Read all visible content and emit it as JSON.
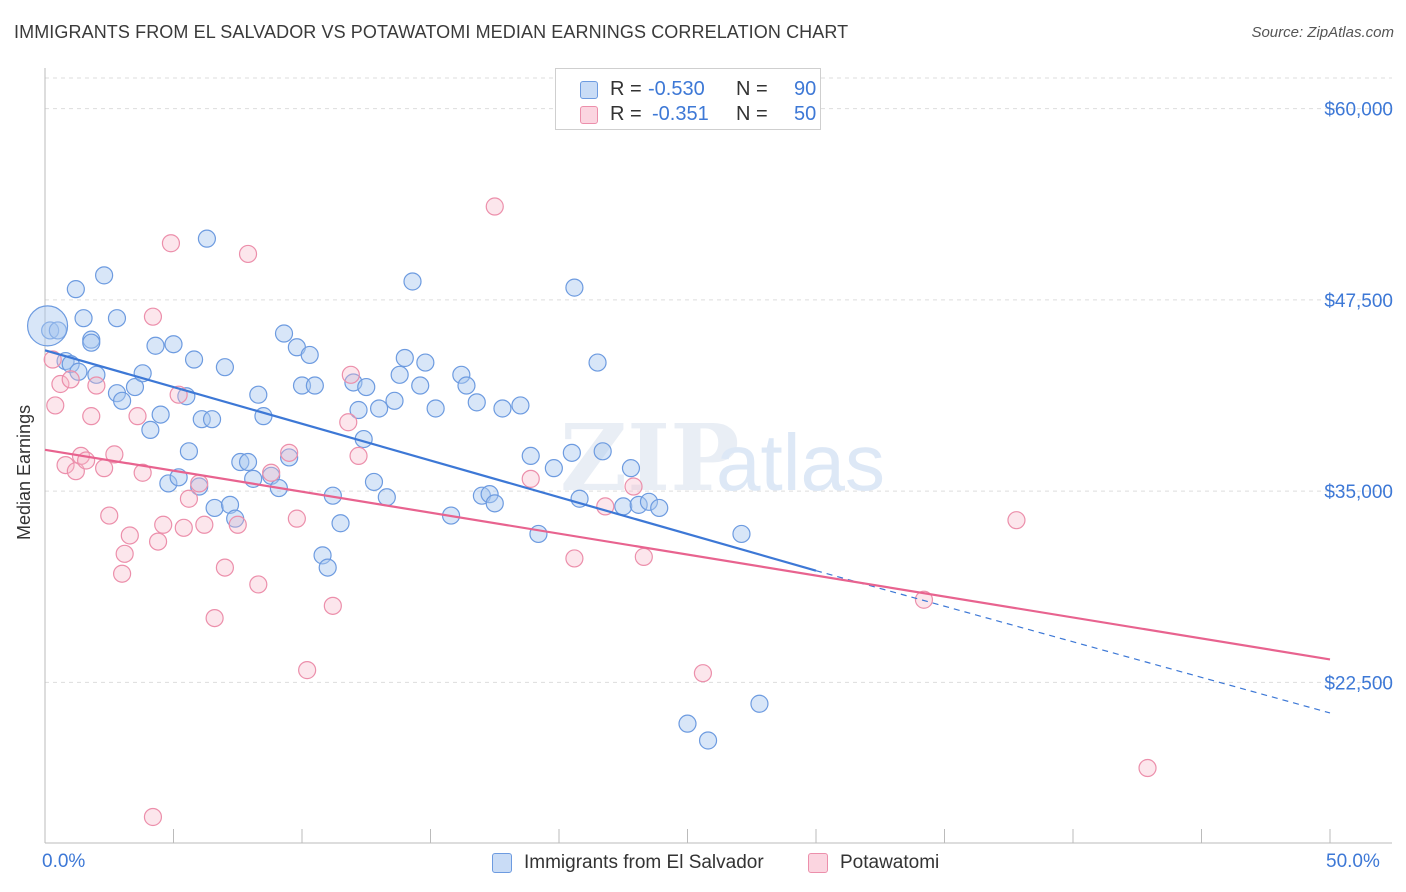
{
  "header": {
    "title": "IMMIGRANTS FROM EL SALVADOR VS POTAWATOMI MEDIAN EARNINGS CORRELATION CHART",
    "source": "Source: ZipAtlas.com"
  },
  "legend": {
    "series": [
      {
        "r_label": "R =",
        "r_value": "-0.530",
        "n_label": "N =",
        "n_value": "90",
        "color": "#a8c8f0"
      },
      {
        "r_label": "R =",
        "r_value": "-0.351",
        "n_label": "N =",
        "n_value": "50",
        "color": "#f5b6c8"
      }
    ]
  },
  "bottom_legend": [
    "Immigrants from El Salvador",
    "Potawatomi"
  ],
  "watermark": {
    "zip": "ZIP",
    "atlas": "atlas"
  },
  "chart_data": {
    "type": "scatter",
    "title": "IMMIGRANTS FROM EL SALVADOR VS POTAWATOMI MEDIAN EARNINGS CORRELATION CHART",
    "xlabel": "",
    "ylabel": "Median Earnings",
    "xlim": [
      0,
      50
    ],
    "ylim": [
      12000,
      62000
    ],
    "x_tick_labels": [
      "0.0%",
      "50.0%"
    ],
    "y_ticks": [
      {
        "value": 22500,
        "label": "$22,500"
      },
      {
        "value": 35000,
        "label": "$35,000"
      },
      {
        "value": 47500,
        "label": "$47,500"
      },
      {
        "value": 60000,
        "label": "$60,000"
      }
    ],
    "grid": true,
    "legend_position": "top-center",
    "colors": {
      "blue": "#3d78d6",
      "blue_fill": "#a8c8f0",
      "pink": "#e8638f",
      "pink_fill": "#f5b6c8",
      "axis_text": "#3d78d6"
    },
    "series": [
      {
        "name": "Immigrants from El Salvador",
        "color": "#3d78d6",
        "trend": {
          "x0": 0,
          "y0": 44200,
          "x1": 30,
          "y1": 29800,
          "dash_to_x": 50,
          "dash_to_y": 20500
        },
        "points": [
          [
            0.2,
            45500
          ],
          [
            0.5,
            45500
          ],
          [
            0.8,
            43500
          ],
          [
            1.0,
            43300
          ],
          [
            1.2,
            48200
          ],
          [
            1.3,
            42800
          ],
          [
            1.5,
            46300
          ],
          [
            1.8,
            44900
          ],
          [
            1.8,
            44700
          ],
          [
            2.0,
            42600
          ],
          [
            2.3,
            49100
          ],
          [
            2.8,
            46300
          ],
          [
            2.8,
            41400
          ],
          [
            3.0,
            40900
          ],
          [
            3.5,
            41800
          ],
          [
            3.8,
            42700
          ],
          [
            4.1,
            39000
          ],
          [
            4.3,
            44500
          ],
          [
            4.5,
            40000
          ],
          [
            4.8,
            35500
          ],
          [
            5.0,
            44600
          ],
          [
            5.2,
            35900
          ],
          [
            5.5,
            41200
          ],
          [
            5.6,
            37600
          ],
          [
            5.8,
            43600
          ],
          [
            6.0,
            35300
          ],
          [
            6.1,
            39700
          ],
          [
            6.3,
            51500
          ],
          [
            6.5,
            39700
          ],
          [
            6.6,
            33900
          ],
          [
            7.0,
            43100
          ],
          [
            7.2,
            34100
          ],
          [
            7.4,
            33200
          ],
          [
            7.6,
            36900
          ],
          [
            7.9,
            36900
          ],
          [
            8.1,
            35800
          ],
          [
            8.3,
            41300
          ],
          [
            8.5,
            39900
          ],
          [
            8.8,
            36000
          ],
          [
            9.1,
            35200
          ],
          [
            9.3,
            45300
          ],
          [
            9.5,
            37200
          ],
          [
            9.8,
            44400
          ],
          [
            10.0,
            41900
          ],
          [
            10.3,
            43900
          ],
          [
            10.5,
            41900
          ],
          [
            10.8,
            30800
          ],
          [
            11.0,
            30000
          ],
          [
            11.2,
            34700
          ],
          [
            11.5,
            32900
          ],
          [
            12.0,
            42100
          ],
          [
            12.2,
            40300
          ],
          [
            12.4,
            38400
          ],
          [
            12.5,
            41800
          ],
          [
            12.8,
            35600
          ],
          [
            13.0,
            40400
          ],
          [
            13.3,
            34600
          ],
          [
            13.6,
            40900
          ],
          [
            13.8,
            42600
          ],
          [
            14.0,
            43700
          ],
          [
            14.3,
            48700
          ],
          [
            14.6,
            41900
          ],
          [
            14.8,
            43400
          ],
          [
            15.2,
            40400
          ],
          [
            15.8,
            33400
          ],
          [
            16.2,
            42600
          ],
          [
            16.4,
            41900
          ],
          [
            16.8,
            40800
          ],
          [
            17.0,
            34700
          ],
          [
            17.3,
            34800
          ],
          [
            17.5,
            34200
          ],
          [
            17.8,
            40400
          ],
          [
            18.5,
            40600
          ],
          [
            18.9,
            37300
          ],
          [
            19.2,
            32200
          ],
          [
            19.8,
            36500
          ],
          [
            20.5,
            37500
          ],
          [
            20.6,
            48300
          ],
          [
            20.8,
            34500
          ],
          [
            21.5,
            43400
          ],
          [
            21.7,
            37600
          ],
          [
            22.5,
            34000
          ],
          [
            22.8,
            36500
          ],
          [
            23.1,
            34100
          ],
          [
            23.5,
            34300
          ],
          [
            23.9,
            33900
          ],
          [
            25.0,
            19800
          ],
          [
            25.8,
            18700
          ],
          [
            27.1,
            32200
          ],
          [
            27.8,
            21100
          ]
        ]
      },
      {
        "name": "Potawatomi",
        "color": "#e8638f",
        "trend": {
          "x0": 0,
          "y0": 37700,
          "x1": 50,
          "y1": 24000
        },
        "points": [
          [
            0.3,
            43600
          ],
          [
            0.4,
            40600
          ],
          [
            0.6,
            42000
          ],
          [
            0.8,
            36700
          ],
          [
            1.0,
            42300
          ],
          [
            1.2,
            36300
          ],
          [
            1.4,
            37300
          ],
          [
            1.6,
            37000
          ],
          [
            1.8,
            39900
          ],
          [
            2.0,
            41900
          ],
          [
            2.3,
            36500
          ],
          [
            2.5,
            33400
          ],
          [
            2.7,
            37400
          ],
          [
            3.0,
            29600
          ],
          [
            3.1,
            30900
          ],
          [
            3.3,
            32100
          ],
          [
            3.6,
            39900
          ],
          [
            3.8,
            36200
          ],
          [
            4.2,
            46400
          ],
          [
            4.4,
            31700
          ],
          [
            4.6,
            32800
          ],
          [
            4.9,
            51200
          ],
          [
            5.2,
            41300
          ],
          [
            5.4,
            32600
          ],
          [
            5.6,
            34500
          ],
          [
            6.0,
            35500
          ],
          [
            6.2,
            32800
          ],
          [
            6.6,
            26700
          ],
          [
            7.0,
            30000
          ],
          [
            7.5,
            32800
          ],
          [
            7.9,
            50500
          ],
          [
            8.3,
            28900
          ],
          [
            8.8,
            36200
          ],
          [
            9.5,
            37500
          ],
          [
            9.8,
            33200
          ],
          [
            10.2,
            23300
          ],
          [
            11.2,
            27500
          ],
          [
            11.8,
            39500
          ],
          [
            11.9,
            42600
          ],
          [
            12.2,
            37300
          ],
          [
            17.5,
            53600
          ],
          [
            18.9,
            35800
          ],
          [
            20.6,
            30600
          ],
          [
            21.8,
            34000
          ],
          [
            22.9,
            35300
          ],
          [
            23.3,
            30700
          ],
          [
            25.6,
            23100
          ],
          [
            34.2,
            27900
          ],
          [
            37.8,
            33100
          ],
          [
            42.9,
            16900
          ]
        ]
      }
    ],
    "extra_points": {
      "blue_large": [
        0.1,
        45800
      ],
      "pink_small": [
        4.2,
        13700
      ]
    }
  }
}
